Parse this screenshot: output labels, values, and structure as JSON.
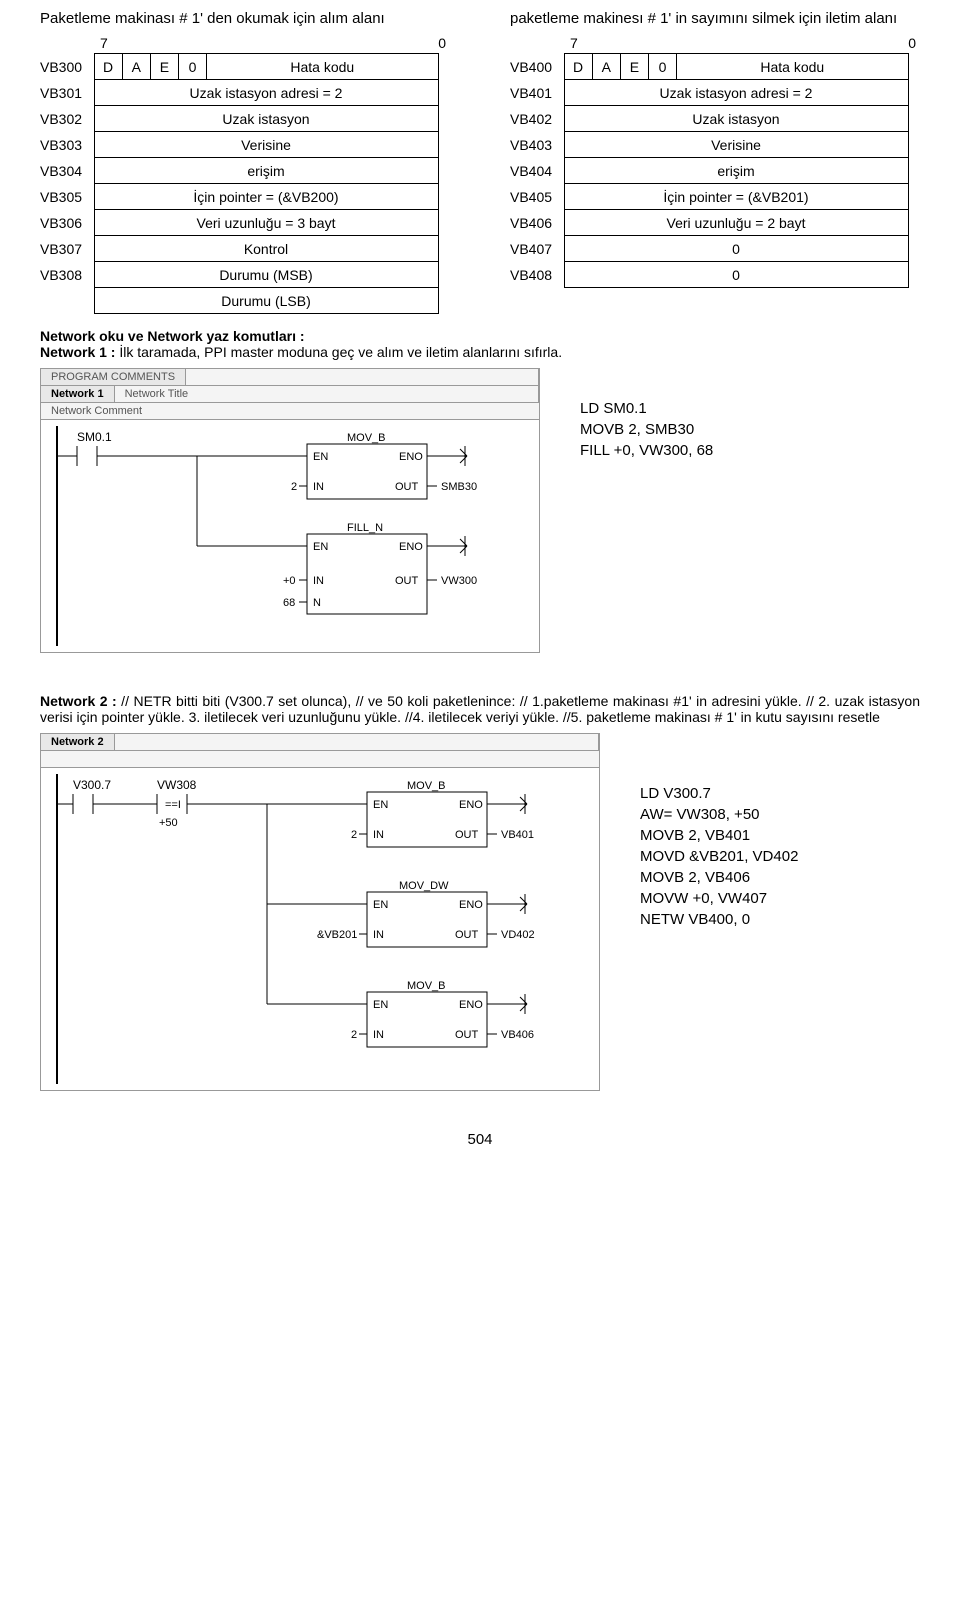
{
  "title_left": "Paketleme makinası # 1' den  okumak için alım alanı",
  "title_right": "paketleme makinesı # 1' in sayımını silmek için iletim alanı",
  "bit_high": "7",
  "bit_low": "0",
  "left_rows": [
    {
      "addr": "VB300",
      "cells": [
        "D",
        "A",
        "E",
        "0",
        "Hata kodu"
      ]
    },
    {
      "addr": "VB301",
      "full": "Uzak istasyon adresi = 2"
    },
    {
      "addr": "VB302",
      "full": "Uzak istasyon"
    },
    {
      "addr": "VB303",
      "full": "Verisine"
    },
    {
      "addr": "VB304",
      "full": "erişim"
    },
    {
      "addr": "VB305",
      "full": "İçin pointer = (&VB200)"
    },
    {
      "addr": "VB306",
      "full": "Veri uzunluğu = 3 bayt"
    },
    {
      "addr": "VB307",
      "full": "Kontrol"
    },
    {
      "addr": "VB308",
      "full": "Durumu  (MSB)"
    },
    {
      "addr": "",
      "full": "Durumu  (LSB)"
    }
  ],
  "right_rows": [
    {
      "addr": "VB400",
      "cells": [
        "D",
        "A",
        "E",
        "0",
        "Hata kodu"
      ]
    },
    {
      "addr": "VB401",
      "full": "Uzak istasyon adresi = 2"
    },
    {
      "addr": "VB402",
      "full": "Uzak istasyon"
    },
    {
      "addr": "VB403",
      "full": "Verisine"
    },
    {
      "addr": "VB404",
      "full": "erişim"
    },
    {
      "addr": "VB405",
      "full": "İçin pointer = (&VB201)"
    },
    {
      "addr": "VB406",
      "full": "Veri uzunluğu = 2 bayt"
    },
    {
      "addr": "VB407",
      "full": "0"
    },
    {
      "addr": "VB408",
      "full": "0"
    }
  ],
  "nt": "Network oku ve Network yaz komutları :",
  "n1": "Network 1 : İlk taramada, PPI master moduna geç ve alım ve iletim alanlarını sıfırla.",
  "code1": [
    "LD     SM0.1",
    "MOVB   2, SMB30",
    "FILL    +0, VW300, 68"
  ],
  "n2pre": "Network 2 :",
  "n2": "  // NETR bitti biti (V300.7 set olunca), // ve 50 koli paketlenince: // 1.paketleme  makinası  #1' in adresini  yükle.  // 2. uzak istasyon verisi için pointer yükle.  3. iletilecek veri uzunluğunu yükle.  //4.  iletilecek veriyi yükle. //5. paketleme makinası # 1' in   kutu sayısını resetle",
  "code2": [
    "LD     V300.7",
    "AW=    VW308, +50",
    "MOVB   2, VB401",
    "MOVD   &VB201, VD402",
    "MOVB   2, VB406",
    "MOVW   +0, VW407",
    "NETW   VB400, 0"
  ],
  "page": "504",
  "ladder1": {
    "header1": "PROGRAM COMMENTS",
    "net": "Network 1",
    "net_title": "Network Title",
    "comment": "Network Comment",
    "contact": "SM0.1",
    "box1": {
      "name": "MOV_B",
      "in": "2",
      "in_lbl": "IN",
      "out": "SMB30",
      "out_lbl": "OUT",
      "en": "EN",
      "eno": "ENO"
    },
    "box2": {
      "name": "FILL_N",
      "in1": "+0",
      "in1_lbl": "IN",
      "in2": "68",
      "in2_lbl": "N",
      "out": "VW300",
      "out_lbl": "OUT",
      "en": "EN",
      "eno": "ENO"
    }
  },
  "ladder2": {
    "net": "Network 2",
    "c1": "V300.7",
    "c2": "VW308",
    "c2op": "==I",
    "c2v": "+50",
    "box1": {
      "name": "MOV_B",
      "in": "2",
      "out": "VB401"
    },
    "box2": {
      "name": "MOV_DW",
      "in": "&VB201",
      "out": "VD402"
    },
    "box3": {
      "name": "MOV_B",
      "in": "2",
      "out": "VB406"
    }
  },
  "colors": {
    "grid": "#999999",
    "bg_bar": "#efefef"
  }
}
